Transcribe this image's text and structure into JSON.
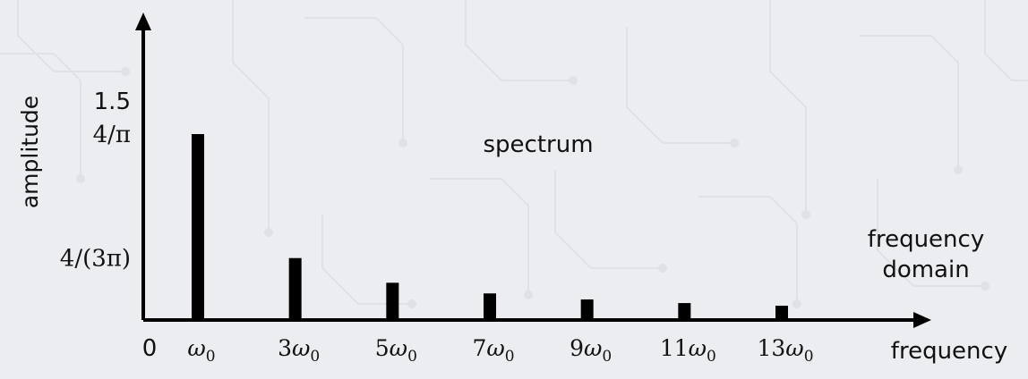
{
  "chart_data": {
    "type": "bar",
    "title": "spectrum",
    "xlabel": "frequency",
    "ylabel": "amplitude",
    "annotation": [
      "frequency",
      "domain"
    ],
    "origin_label": "0",
    "categories": [
      "ω0",
      "3ω0",
      "5ω0",
      "7ω0",
      "9ω0",
      "11ω0",
      "13ω0"
    ],
    "x": [
      1,
      3,
      5,
      7,
      9,
      11,
      13
    ],
    "values": [
      1.273,
      0.424,
      0.255,
      0.182,
      0.141,
      0.116,
      0.098
    ],
    "ylim": [
      0,
      1.5
    ],
    "yticks": [
      {
        "value": 1.5,
        "label": "1.5"
      },
      {
        "value": 1.273,
        "label": "4/π"
      },
      {
        "value": 0.424,
        "label": "4/(3π)"
      }
    ],
    "grid": false,
    "bar_color": "#000000",
    "axis_color": "#000000"
  }
}
